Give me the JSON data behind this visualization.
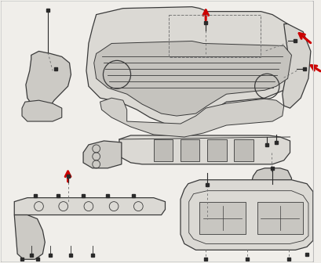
{
  "background_color": "#f0eeea",
  "border_color": "#bbbbbb",
  "line_color": "#3a3a3a",
  "arrow_color": "#cc0000",
  "bolt_color": "#2a2a2a",
  "dashed_color": "#777777",
  "figsize": [
    4.09,
    3.36
  ],
  "dpi": 100,
  "fill_color": "#dbd9d4",
  "fill_color2": "#cccac5",
  "white_bg": "#f2f0ec"
}
